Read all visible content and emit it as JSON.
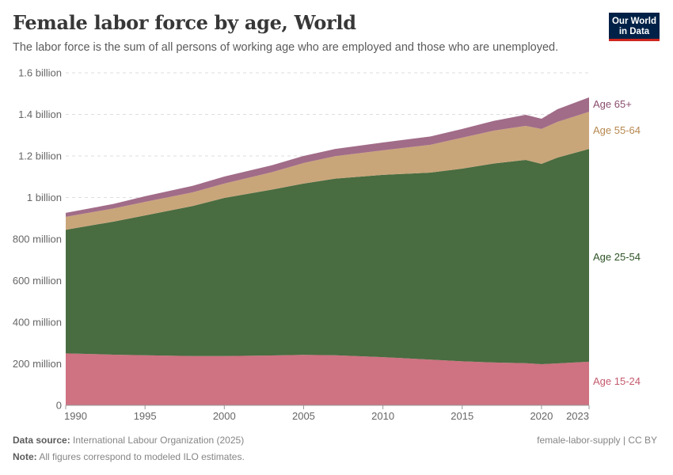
{
  "header": {
    "title": "Female labor force by age, World",
    "subtitle": "The labor force is the sum of all persons of working age who are employed and those who are unemployed.",
    "logo_line1": "Our World",
    "logo_line2": "in Data"
  },
  "footer": {
    "source_label": "Data source:",
    "source_text": "International Labour Organization (2025)",
    "note_label": "Note:",
    "note_text": "All figures correspond to modeled ILO estimates.",
    "right_text": "female-labor-supply | CC BY"
  },
  "chart_data": {
    "type": "area",
    "stacked": true,
    "title": "Female labor force by age, World",
    "xlabel": "",
    "ylabel": "",
    "units": "million",
    "ylim": [
      0,
      1600
    ],
    "xlim": [
      1990,
      2023
    ],
    "yticks": [
      {
        "value": 0,
        "label": "0"
      },
      {
        "value": 200,
        "label": "200 million"
      },
      {
        "value": 400,
        "label": "400 million"
      },
      {
        "value": 600,
        "label": "600 million"
      },
      {
        "value": 800,
        "label": "800 million"
      },
      {
        "value": 1000,
        "label": "1 billion"
      },
      {
        "value": 1200,
        "label": "1.2 billion"
      },
      {
        "value": 1400,
        "label": "1.4 billion"
      },
      {
        "value": 1600,
        "label": "1.6 billion"
      }
    ],
    "xticks": [
      {
        "value": 1990,
        "label": "1990"
      },
      {
        "value": 1995,
        "label": "1995"
      },
      {
        "value": 2000,
        "label": "2000"
      },
      {
        "value": 2005,
        "label": "2005"
      },
      {
        "value": 2010,
        "label": "2010"
      },
      {
        "value": 2015,
        "label": "2015"
      },
      {
        "value": 2020,
        "label": "2020"
      },
      {
        "value": 2023,
        "label": "2023"
      }
    ],
    "grid": true,
    "legend": "right-inline",
    "x": [
      1990,
      1993,
      1995,
      1998,
      2000,
      2003,
      2005,
      2007,
      2010,
      2013,
      2015,
      2017,
      2019,
      2020,
      2021,
      2023
    ],
    "series": [
      {
        "name": "Age 15-24",
        "color": "#cf7282",
        "label_color": "#c45a6d",
        "values": [
          250,
          244,
          241,
          237,
          237,
          240,
          243,
          241,
          232,
          220,
          212,
          206,
          203,
          198,
          202,
          210
        ]
      },
      {
        "name": "Age 25-54",
        "color": "#496c40",
        "label_color": "#2f5427",
        "values": [
          595,
          640,
          673,
          722,
          761,
          798,
          824,
          850,
          877,
          900,
          927,
          958,
          978,
          964,
          990,
          1024
        ]
      },
      {
        "name": "Age 55-64",
        "color": "#c9a57a",
        "label_color": "#b7884f",
        "values": [
          62,
          63,
          65,
          66,
          69,
          84,
          99,
          108,
          118,
          134,
          149,
          158,
          164,
          168,
          172,
          179
        ]
      },
      {
        "name": "Age 65+",
        "color": "#a16c88",
        "label_color": "#8a4c6d",
        "values": [
          19,
          22,
          27,
          31,
          34,
          33,
          34,
          35,
          38,
          40,
          42,
          47,
          53,
          49,
          61,
          69
        ]
      }
    ]
  }
}
